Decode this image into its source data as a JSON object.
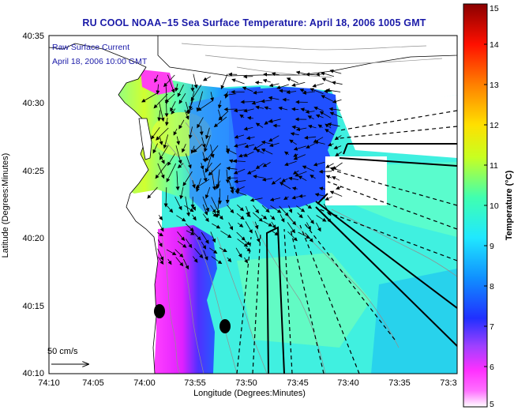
{
  "title": "RU COOL  NOAA−15  Sea Surface Temperature:  April 18, 2006 1005 GMT",
  "overlay": {
    "line1": "Raw Surface Current",
    "line2": "April 18, 2006 10:00 GMT",
    "scale_label": "50 cm/s"
  },
  "axes": {
    "xlabel": "Longitude (Degrees:Minutes)",
    "ylabel": "Latitude (Degrees:Minutes)",
    "x_ticks": [
      "74:10",
      "74:05",
      "74:00",
      "73:55",
      "73:50",
      "73:45",
      "73:40",
      "73:35",
      "73:3"
    ],
    "y_ticks": [
      "40:35",
      "40:30",
      "40:25",
      "40:20",
      "40:15",
      "40:10"
    ]
  },
  "colorbar": {
    "label": "Temperature (°C)",
    "ticks": [
      "15",
      "14",
      "13",
      "12",
      "11",
      "10",
      "9",
      "8",
      "7",
      "6",
      "5"
    ],
    "min": 5,
    "max": 15
  }
}
